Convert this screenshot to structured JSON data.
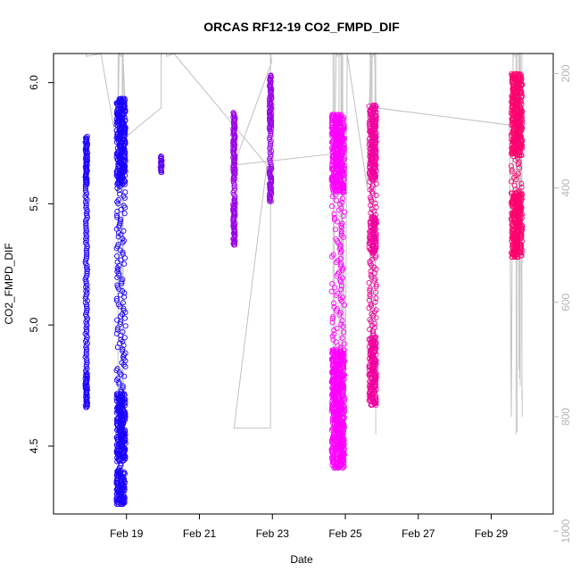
{
  "chart_data": {
    "type": "scatter",
    "title": "ORCAS RF12-19 CO2_FMPD_DIF",
    "xlabel": "Date",
    "ylabel": "CO2_FMPD_DIF",
    "x_ticks": [
      "Feb 19",
      "Feb 21",
      "Feb 23",
      "Feb 25",
      "Feb 27",
      "Feb 29"
    ],
    "y_ticks": [
      "4.5",
      "5.0",
      "5.5",
      "6.0"
    ],
    "y_tick_values": [
      4.5,
      5.0,
      5.5,
      6.0
    ],
    "ylim": [
      4.22,
      6.12
    ],
    "secondary_y_ticks": [
      "200",
      "400",
      "600",
      "800",
      "1000"
    ],
    "secondary_y_tick_values": [
      200,
      400,
      600,
      800,
      1000
    ],
    "secondary_ylim": [
      970,
      165
    ],
    "grid": false,
    "series": [
      {
        "color": "#1a00ff",
        "flights": [
          {
            "day": 17.9,
            "width": 0.06,
            "min": 4.66,
            "max": 5.78,
            "dense": [
              [
                5.58,
                5.78
              ],
              [
                4.66,
                4.8
              ]
            ]
          },
          {
            "day": 18.85,
            "width": 0.25,
            "min": 4.26,
            "max": 5.94,
            "dense": [
              [
                5.58,
                5.94
              ],
              [
                4.26,
                4.4
              ],
              [
                4.44,
                4.72
              ]
            ]
          }
        ]
      },
      {
        "color": "#5a00f2",
        "flights": [
          {
            "day": 19.95,
            "width": 0.05,
            "min": 5.63,
            "max": 5.7,
            "dense": [
              [
                5.63,
                5.7
              ]
            ]
          }
        ]
      },
      {
        "color": "#9900e6",
        "flights": [
          {
            "day": 21.95,
            "width": 0.06,
            "min": 5.33,
            "max": 5.88,
            "dense": [
              [
                5.6,
                5.88
              ],
              [
                5.33,
                5.52
              ]
            ]
          },
          {
            "day": 22.95,
            "width": 0.06,
            "min": 5.51,
            "max": 6.03,
            "dense": [
              [
                5.51,
                5.65
              ],
              [
                5.8,
                6.03
              ]
            ]
          }
        ]
      },
      {
        "color": "#ff00ff",
        "flights": [
          {
            "day": 24.8,
            "width": 0.35,
            "min": 4.41,
            "max": 5.87,
            "dense": [
              [
                5.55,
                5.87
              ],
              [
                4.41,
                4.9
              ]
            ]
          }
        ]
      },
      {
        "color": "#f2009f",
        "flights": [
          {
            "day": 25.75,
            "width": 0.2,
            "min": 4.67,
            "max": 5.91,
            "dense": [
              [
                5.6,
                5.91
              ],
              [
                4.67,
                4.95
              ],
              [
                5.3,
                5.45
              ]
            ]
          }
        ]
      },
      {
        "color": "#ff006e",
        "flights": [
          {
            "day": 29.7,
            "width": 0.3,
            "min": 5.28,
            "max": 6.04,
            "dense": [
              [
                5.7,
                6.04
              ],
              [
                5.28,
                5.55
              ]
            ]
          }
        ]
      }
    ],
    "pressure_track": [
      [
        17.9,
        160
      ],
      [
        17.9,
        170
      ],
      [
        18.3,
        160
      ],
      [
        18.75,
        330
      ],
      [
        18.8,
        160
      ],
      [
        18.85,
        170
      ],
      [
        18.9,
        160
      ],
      [
        19.0,
        310
      ],
      [
        19.95,
        260
      ],
      [
        19.95,
        160
      ],
      [
        20.1,
        160
      ],
      [
        20.1,
        170
      ],
      [
        20.3,
        160
      ],
      [
        22.85,
        360
      ],
      [
        21.95,
        820
      ],
      [
        22.95,
        820
      ],
      [
        22.95,
        160
      ],
      [
        22.98,
        180
      ],
      [
        21.95,
        360
      ],
      [
        24.7,
        340
      ],
      [
        24.75,
        160
      ],
      [
        24.8,
        170
      ],
      [
        24.9,
        160
      ],
      [
        25.0,
        800
      ],
      [
        25.05,
        160
      ],
      [
        25.6,
        400
      ],
      [
        25.7,
        160
      ],
      [
        25.75,
        170
      ],
      [
        25.8,
        160
      ],
      [
        25.85,
        260
      ],
      [
        29.5,
        290
      ],
      [
        29.55,
        800
      ],
      [
        29.6,
        160
      ],
      [
        29.65,
        170
      ],
      [
        29.8,
        160
      ],
      [
        29.85,
        800
      ]
    ]
  }
}
